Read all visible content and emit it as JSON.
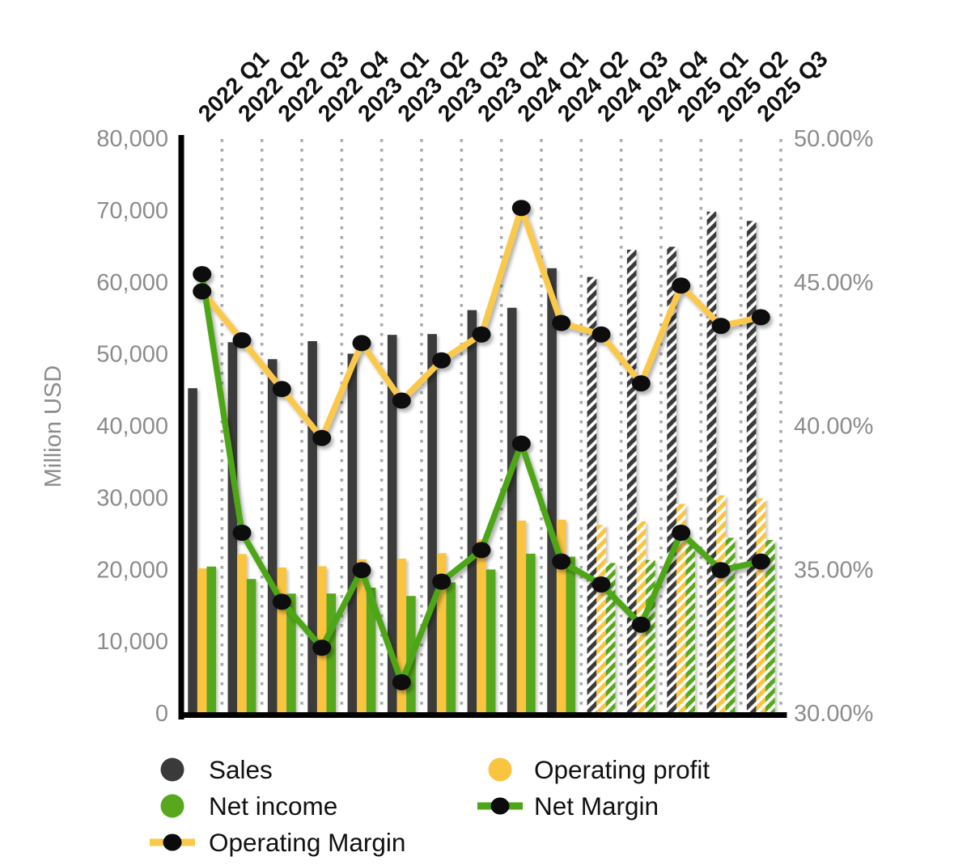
{
  "chart_data": {
    "type": "combo-bar-line",
    "title": "",
    "categories": [
      "2022 Q1",
      "2022 Q2",
      "2022 Q3",
      "2022 Q4",
      "2023 Q1",
      "2023 Q2",
      "2023 Q3",
      "2023 Q4",
      "2024 Q1",
      "2024 Q2",
      "2024 Q3",
      "2024 Q4",
      "2025 Q1",
      "2025 Q2",
      "2025 Q3"
    ],
    "series": [
      {
        "name": "Sales",
        "type": "bar",
        "axis": "left",
        "color": "#3a3a3a",
        "values": [
          45317,
          51728,
          49360,
          51865,
          50122,
          52747,
          52857,
          56189,
          56517,
          62020,
          60800,
          64600,
          65000,
          69900,
          68600
        ]
      },
      {
        "name": "Operating profit",
        "type": "bar",
        "axis": "left",
        "color": "#f9c440",
        "values": [
          20238,
          22247,
          20364,
          20534,
          21518,
          21600,
          22352,
          24254,
          26895,
          27032,
          26300,
          26800,
          29200,
          30400,
          30000
        ]
      },
      {
        "name": "Net income",
        "type": "bar",
        "axis": "left",
        "color": "#57a81c",
        "values": [
          20505,
          18765,
          16728,
          16740,
          17556,
          16400,
          18299,
          20081,
          22291,
          21870,
          21000,
          21400,
          23600,
          24500,
          24200
        ]
      },
      {
        "name": "Operating Margin",
        "type": "line",
        "axis": "right",
        "color": "#fbc94a",
        "unit": "%",
        "values": [
          44.7,
          43.0,
          41.3,
          39.6,
          42.9,
          40.9,
          42.3,
          43.2,
          47.6,
          43.6,
          43.2,
          41.5,
          44.9,
          43.5,
          43.8
        ]
      },
      {
        "name": "Net Margin",
        "type": "line",
        "axis": "right",
        "color": "#4da619",
        "unit": "%",
        "values": [
          45.3,
          36.3,
          33.9,
          32.3,
          35.0,
          31.1,
          34.6,
          35.7,
          39.4,
          35.3,
          34.5,
          33.1,
          36.3,
          35.0,
          35.3
        ]
      }
    ],
    "forecast_start_index": 10,
    "forecast_style": "hatched",
    "left_axis": {
      "label": "Million USD",
      "min": 0,
      "max": 80000,
      "tick_values": [
        0,
        10000,
        20000,
        30000,
        40000,
        50000,
        60000,
        70000,
        80000
      ],
      "tick_labels": [
        "0",
        "10,000",
        "20,000",
        "30,000",
        "40,000",
        "50,000",
        "60,000",
        "70,000",
        "80,000"
      ]
    },
    "right_axis": {
      "label": "",
      "min": 30,
      "max": 50,
      "tick_values": [
        30,
        35,
        40,
        45,
        50
      ],
      "tick_labels": [
        "30.00%",
        "35.00%",
        "40.00%",
        "45.00%",
        "50.00%"
      ]
    },
    "grid": {
      "vertical_dotted": true,
      "color": "#ababab"
    },
    "marker_color": "#0b0b0b",
    "legend": {
      "columns": [
        [
          {
            "label": "Sales",
            "marker": "circle",
            "color": "#3a3a3a"
          },
          {
            "label": "Net income",
            "marker": "circle",
            "color": "#57a81c"
          },
          {
            "label": "Operating Margin",
            "marker": "line-dot",
            "color": "#fbc94a"
          }
        ],
        [
          {
            "label": "Operating profit",
            "marker": "circle",
            "color": "#f9c440"
          },
          {
            "label": "Net Margin",
            "marker": "line-dot",
            "color": "#4da619"
          }
        ]
      ]
    },
    "text_colors": {
      "ticks": "#8c8c8c",
      "x_labels": "#111111",
      "legend": "#111111"
    }
  }
}
